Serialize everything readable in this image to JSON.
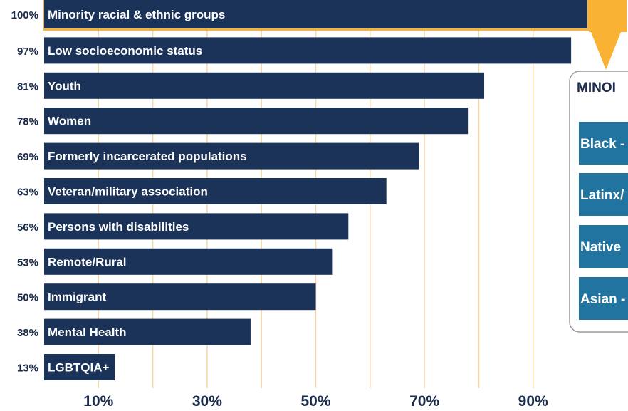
{
  "chart_data": {
    "type": "bar",
    "orientation": "horizontal",
    "categories": [
      "Minority racial & ethnic groups",
      "Low socioeconomic status",
      "Youth",
      "Women",
      "Formerly incarcerated populations",
      "Veteran/military association",
      "Persons with disabilities",
      "Remote/Rural",
      "Immigrant",
      "Mental Health",
      "LGBTQIA+"
    ],
    "values": [
      100,
      97,
      81,
      78,
      69,
      63,
      56,
      53,
      50,
      38,
      13
    ],
    "value_labels": [
      "100%",
      "97%",
      "81%",
      "78%",
      "69%",
      "63%",
      "56%",
      "53%",
      "50%",
      "38%",
      "13%"
    ],
    "highlighted_index": 0,
    "xlim": [
      0,
      100
    ],
    "x_tick_labels": [
      "10%",
      "30%",
      "50%",
      "70%",
      "90%"
    ],
    "x_tick_values": [
      10,
      30,
      50,
      70,
      90
    ],
    "grid_values": [
      10,
      20,
      30,
      40,
      50,
      60,
      70,
      80,
      90
    ],
    "grid": true,
    "colors": {
      "bar": "#1b3358",
      "highlight": "#f9b233",
      "grid": "#f6d7a0",
      "text_dark": "#1b2b4b",
      "panel_bar": "#2174a0",
      "panel_border": "#9a9a9a"
    }
  },
  "sub_panel": {
    "title": "MINOI",
    "items": [
      "Black -",
      "Latinx/",
      "Native",
      "Asian -"
    ]
  }
}
